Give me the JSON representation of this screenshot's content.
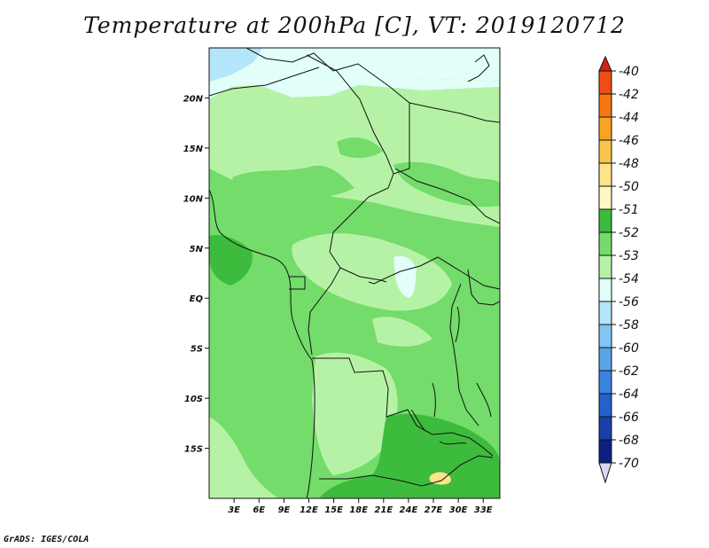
{
  "title": "Temperature at 200hPa [C], VT: 2019120712",
  "credit": "GrADS: IGES/COLA",
  "map": {
    "lon_range": [
      0,
      35
    ],
    "lat_range": [
      -20,
      25
    ],
    "lon_ticks": [
      "3E",
      "6E",
      "9E",
      "12E",
      "15E",
      "18E",
      "21E",
      "24E",
      "27E",
      "30E",
      "33E"
    ],
    "lat_ticks": [
      "20N",
      "15N",
      "10N",
      "5N",
      "EQ",
      "5S",
      "10S",
      "15S"
    ],
    "dominant_band": "-53",
    "features": [
      {
        "name": "cold-patch-northwest",
        "band": "-56"
      },
      {
        "name": "cool-band-north",
        "band": "-54"
      },
      {
        "name": "cool-patch-central",
        "band": "-54"
      },
      {
        "name": "warm-band-south",
        "band": "-52"
      },
      {
        "name": "warmest-patch-south",
        "band": "-50"
      }
    ]
  },
  "legend": {
    "labels": [
      "-40",
      "-42",
      "-44",
      "-46",
      "-48",
      "-50",
      "-51",
      "-52",
      "-53",
      "-54",
      "-56",
      "-58",
      "-60",
      "-62",
      "-64",
      "-66",
      "-68",
      "-70"
    ],
    "colors": [
      "#e8191b",
      "#ee4d13",
      "#f57910",
      "#f8a422",
      "#f9c64c",
      "#fde38a",
      "#fef8c3",
      "#3dbb3d",
      "#74dc6a",
      "#b6f2a6",
      "#e1fff8",
      "#b3e5fb",
      "#82c6f4",
      "#58a5ea",
      "#3a83de",
      "#2561cd",
      "#1840a8",
      "#0d1f83",
      "#00085a"
    ],
    "top_arrow_color": "#d62311",
    "bottom_arrow_color": "#d8d8f2"
  }
}
